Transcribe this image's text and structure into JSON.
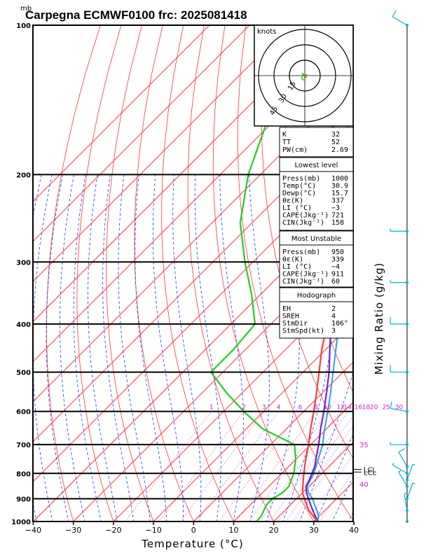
{
  "chart_data": {
    "type": "skew-t",
    "title": "Carpegna ECMWF0100  frc: 2025081418",
    "pressure_unit_label": "mb",
    "xlabel": "Temperature (°C)",
    "right_label": "Mixing Ratio (g/kg)",
    "x_ticks": [
      "−40",
      "−30",
      "−20",
      "−10",
      "0",
      "10",
      "20",
      "30",
      "40"
    ],
    "xlim": [
      -40,
      40
    ],
    "pressure_levels": [
      "100",
      "200",
      "300",
      "400",
      "500",
      "600",
      "700",
      "800",
      "900",
      "1000"
    ],
    "mixing_ratio_labels": [
      "1",
      "2",
      "3",
      "4",
      "6",
      "8",
      "10",
      "12",
      "14",
      "16",
      "18",
      "20",
      "25",
      "30"
    ],
    "theta_e_labels": [
      "35",
      "40"
    ],
    "lcl_labels": [
      "LCL",
      "LCL"
    ],
    "temperature": [
      [
        1000,
        30.9
      ],
      [
        975,
        28.5
      ],
      [
        950,
        26
      ],
      [
        925,
        24
      ],
      [
        900,
        22
      ],
      [
        875,
        20
      ],
      [
        850,
        18.5
      ],
      [
        825,
        17
      ],
      [
        800,
        15.5
      ],
      [
        775,
        14
      ],
      [
        750,
        12.5
      ],
      [
        700,
        9.5
      ],
      [
        650,
        6
      ],
      [
        600,
        2.5
      ],
      [
        550,
        -1.5
      ],
      [
        500,
        -6
      ],
      [
        450,
        -11
      ],
      [
        400,
        -16
      ],
      [
        350,
        -23
      ],
      [
        300,
        -31
      ],
      [
        250,
        -41
      ],
      [
        200,
        -52
      ],
      [
        150,
        -60
      ],
      [
        100,
        -68
      ]
    ],
    "dewpoint": [
      [
        1000,
        15.7
      ],
      [
        975,
        15.5
      ],
      [
        950,
        14.8
      ],
      [
        925,
        14
      ],
      [
        900,
        14
      ],
      [
        875,
        15
      ],
      [
        850,
        15
      ],
      [
        825,
        14
      ],
      [
        800,
        13
      ],
      [
        775,
        11.5
      ],
      [
        750,
        10
      ],
      [
        700,
        6
      ],
      [
        650,
        -6
      ],
      [
        600,
        -15
      ],
      [
        550,
        -24
      ],
      [
        500,
        -33
      ],
      [
        450,
        -33
      ],
      [
        400,
        -34
      ],
      [
        350,
        -42
      ],
      [
        300,
        -52
      ],
      [
        250,
        -63
      ],
      [
        200,
        -73
      ],
      [
        150,
        -83
      ],
      [
        100,
        -92
      ]
    ],
    "parcel_lowest": [
      [
        1000,
        30.9
      ],
      [
        975,
        29
      ],
      [
        950,
        27
      ],
      [
        925,
        25
      ],
      [
        900,
        23
      ],
      [
        875,
        21
      ],
      [
        850,
        19.3
      ],
      [
        825,
        18.5
      ],
      [
        800,
        17.5
      ],
      [
        775,
        16.5
      ],
      [
        750,
        15
      ],
      [
        700,
        12
      ],
      [
        650,
        8.5
      ],
      [
        600,
        5
      ],
      [
        550,
        1
      ],
      [
        500,
        -3.5
      ],
      [
        450,
        -9
      ],
      [
        400,
        -15
      ],
      [
        350,
        -22
      ],
      [
        300,
        -31
      ],
      [
        250,
        -41
      ],
      [
        200,
        -53
      ],
      [
        150,
        -67
      ],
      [
        100,
        -85
      ]
    ],
    "parcel_mu": [
      [
        1000,
        31
      ],
      [
        975,
        29.8
      ],
      [
        950,
        28
      ],
      [
        925,
        26
      ],
      [
        900,
        24
      ],
      [
        875,
        21.5
      ],
      [
        850,
        19.5
      ],
      [
        825,
        18.8
      ],
      [
        800,
        18
      ],
      [
        775,
        16.8
      ],
      [
        750,
        15.6
      ],
      [
        700,
        13
      ],
      [
        650,
        9.5
      ],
      [
        600,
        6
      ],
      [
        550,
        2
      ],
      [
        500,
        -2.5
      ],
      [
        450,
        -7.5
      ],
      [
        400,
        -13
      ],
      [
        350,
        -19.5
      ],
      [
        300,
        -27
      ],
      [
        250,
        -36.5
      ],
      [
        200,
        -48
      ],
      [
        150,
        -62
      ],
      [
        100,
        -79
      ]
    ],
    "hodograph": {
      "label": "knots",
      "rings": [
        "15",
        "30",
        "45"
      ],
      "trace": [
        [
          0,
          -10
        ],
        [
          -6,
          -6
        ],
        [
          -4,
          4
        ],
        [
          2,
          -4
        ],
        [
          4,
          3
        ]
      ]
    },
    "indices": [
      {
        "label": "K",
        "value": "32"
      },
      {
        "label": "TT",
        "value": "52"
      },
      {
        "label": "PW(cm)",
        "value": "2.69"
      }
    ],
    "lowest_level": {
      "header": "Lowest level",
      "rows": [
        {
          "label": "Press(mb)",
          "value": "1000"
        },
        {
          "label": "Temp(°C)",
          "value": "30.9"
        },
        {
          "label": "Dewp(°C)",
          "value": "15.7"
        },
        {
          "label": "θε(K)",
          "value": "337"
        },
        {
          "label": "LI (°C)",
          "value": "−3"
        },
        {
          "label": "CAPE(Jkg⁻¹)",
          "value": "721"
        },
        {
          "label": "CIN(Jkg⁻¹)",
          "value": "158"
        }
      ]
    },
    "most_unstable": {
      "header": "Most Unstable",
      "rows": [
        {
          "label": "Press(mb)",
          "value": "950"
        },
        {
          "label": "θε(K)",
          "value": "339"
        },
        {
          "label": "LI (°C)",
          "value": "−4"
        },
        {
          "label": "CAPE(Jkg⁻¹)",
          "value": "911"
        },
        {
          "label": "CIN(Jkg⁻¹)",
          "value": "60"
        }
      ]
    },
    "hodograph_table": {
      "header": "Hodograph",
      "rows": [
        {
          "label": "EH",
          "value": "2"
        },
        {
          "label": "SREH",
          "value": "4"
        },
        {
          "label": "StmDir",
          "value": "106°"
        },
        {
          "label": "StmSpd(kt)",
          "value": "3"
        }
      ]
    },
    "wind_barbs": [
      {
        "p": 100,
        "spd": 10,
        "dir": 300
      },
      {
        "p": 260,
        "spd": 5,
        "dir": 270
      },
      {
        "p": 330,
        "spd": 5,
        "dir": 270
      },
      {
        "p": 400,
        "spd": 10,
        "dir": 270
      },
      {
        "p": 500,
        "spd": 10,
        "dir": 270
      },
      {
        "p": 600,
        "spd": 10,
        "dir": 280
      },
      {
        "p": 700,
        "spd": 5,
        "dir": 270
      },
      {
        "p": 775,
        "spd": 10,
        "dir": 330
      },
      {
        "p": 800,
        "spd": 5,
        "dir": 300
      },
      {
        "p": 825,
        "spd": 5,
        "dir": 20
      },
      {
        "p": 850,
        "spd": 5,
        "dir": 330
      },
      {
        "p": 900,
        "spd": 5,
        "dir": 20
      },
      {
        "p": 950,
        "spd": 5,
        "dir": 350
      },
      {
        "p": 1000,
        "spd": 0,
        "dir": 0
      }
    ],
    "colors": {
      "temperature": "#ff3a3a",
      "dewpoint": "#22cc22",
      "parcel": "#7a22c8",
      "parcel2": "#2aa2e8",
      "isotherm": "#ff3333",
      "dry_adiabat": "#ff3333",
      "moist_adiabat": "#1e3cff",
      "mixing_ratio": "#cc22cc",
      "barb": "#00b4c8"
    }
  }
}
